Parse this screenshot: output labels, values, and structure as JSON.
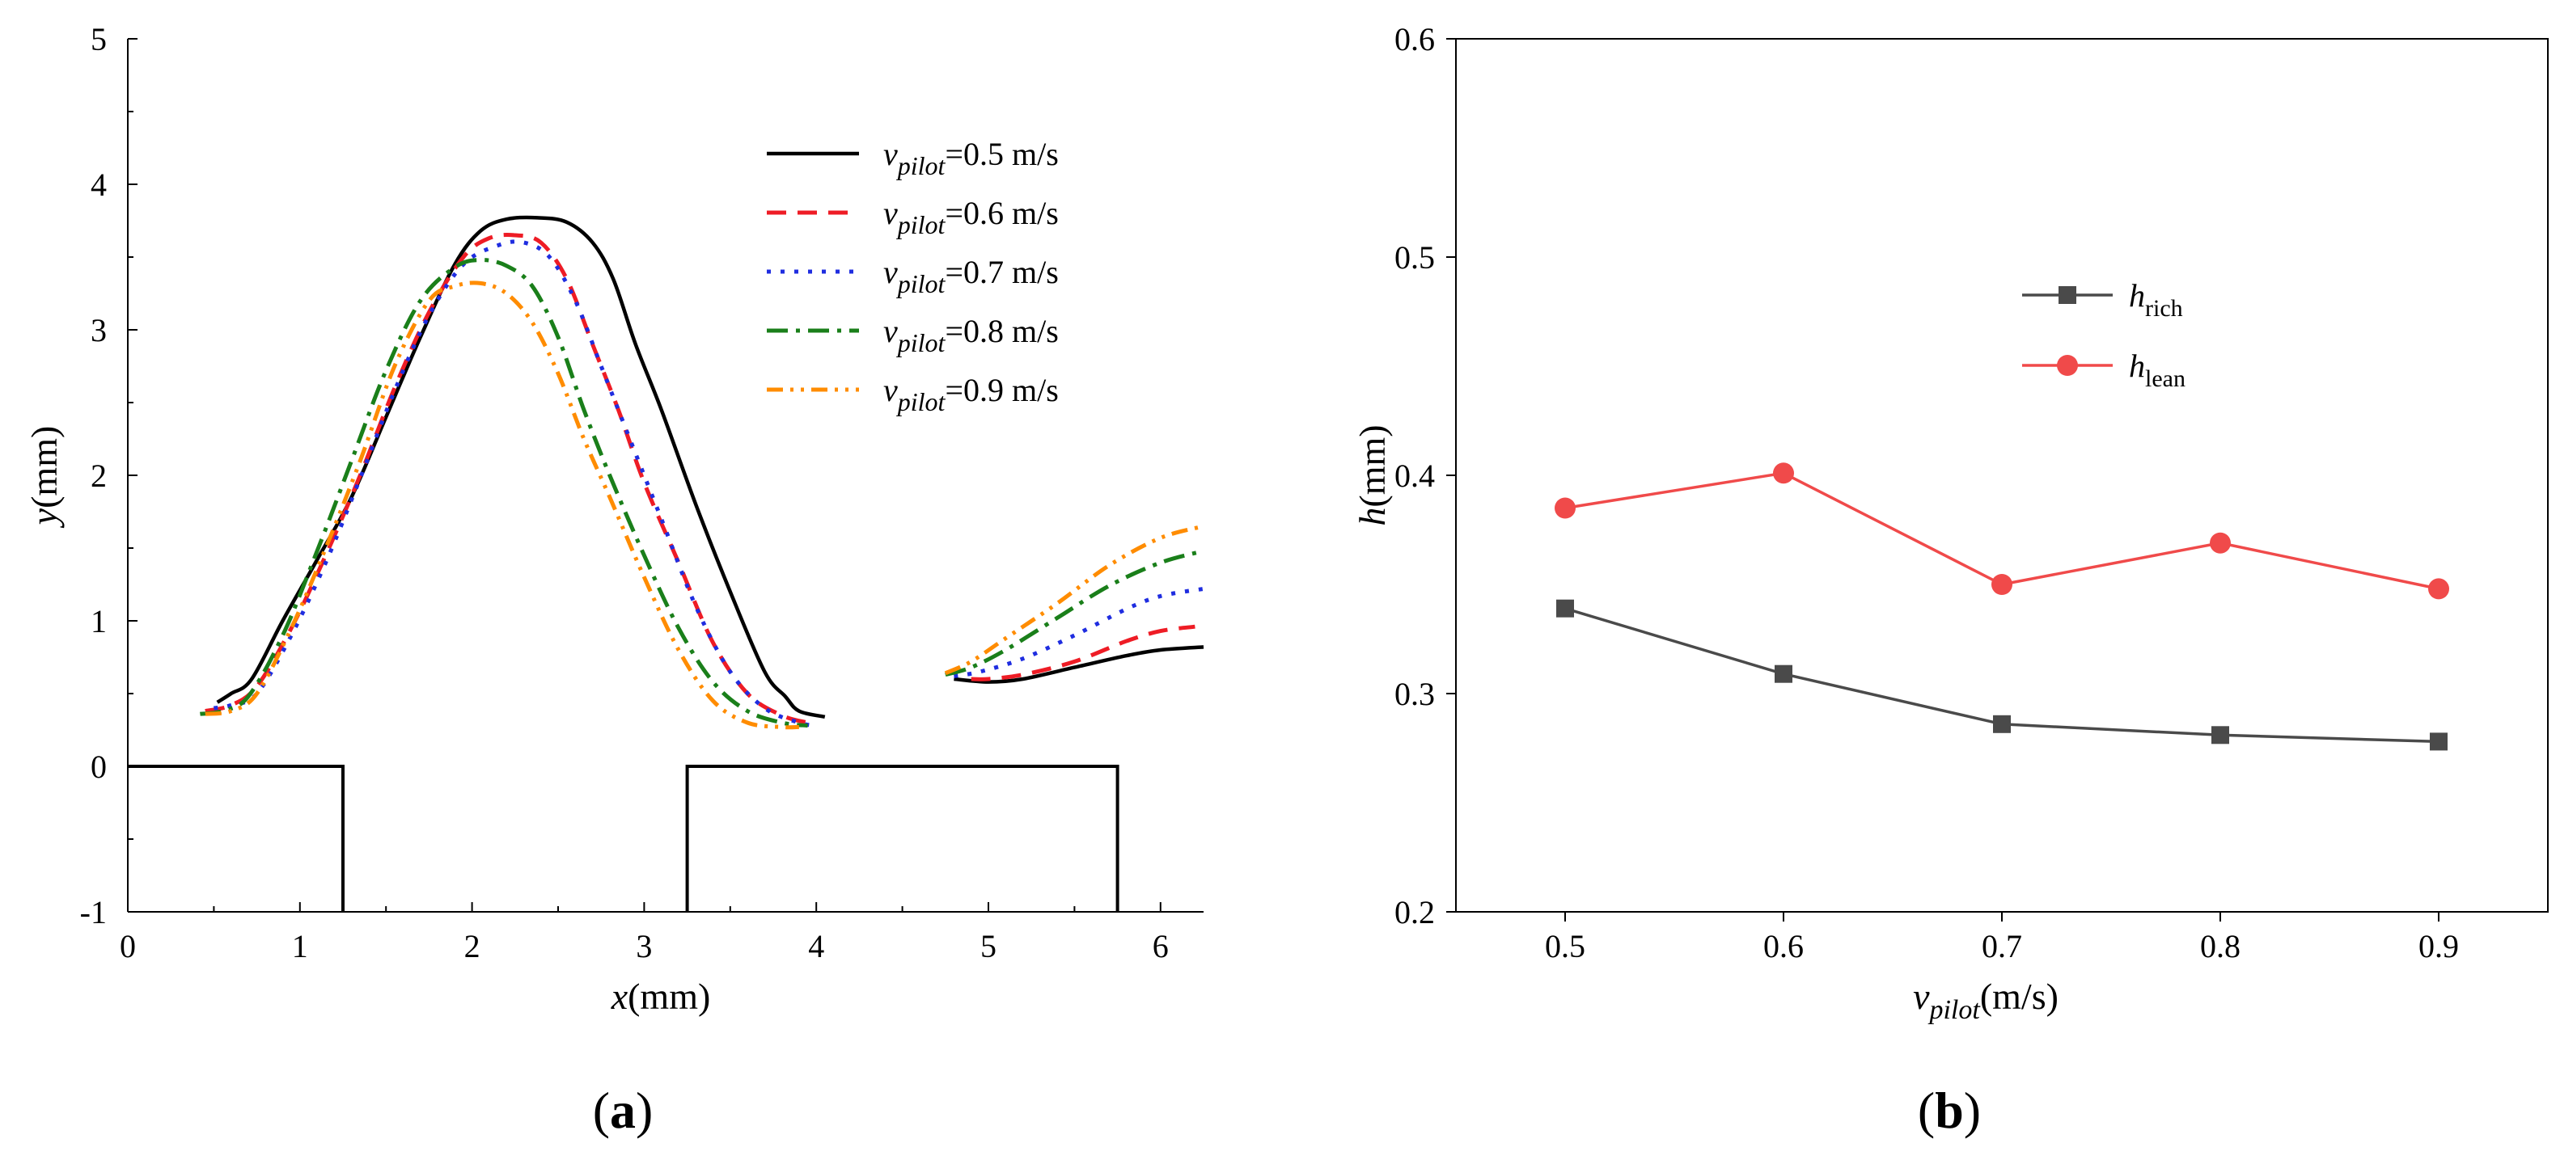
{
  "chart_data": [
    {
      "id": "a",
      "type": "line",
      "panel_label": "(a)",
      "panel_label_parts": [
        "(",
        "a",
        ")"
      ],
      "xlabel": {
        "var": "x",
        "unit": "(mm)"
      },
      "ylabel": {
        "var": "y",
        "unit": "(mm)"
      },
      "xlim": [
        0,
        6.25
      ],
      "ylim": [
        -1,
        5
      ],
      "xticks": [
        0,
        1,
        2,
        3,
        4,
        5,
        6
      ],
      "yticks": [
        -1,
        0,
        1,
        2,
        3,
        4,
        5
      ],
      "xtick_labels": [
        "0",
        "1",
        "2",
        "3",
        "4",
        "5",
        "6"
      ],
      "ytick_labels": [
        "-1",
        "0",
        "1",
        "2",
        "3",
        "4",
        "5"
      ],
      "legend_position": "top-right",
      "geometry": [
        {
          "name": "wall-left",
          "x": [
            0,
            1.25,
            1.25
          ],
          "y": [
            0,
            0,
            -1
          ]
        },
        {
          "name": "wall-right",
          "x": [
            3.25,
            3.25,
            5.75,
            5.75
          ],
          "y": [
            -1,
            0,
            0,
            -1
          ]
        }
      ],
      "series": [
        {
          "name": "0.5 m/s",
          "legend_var": "v",
          "legend_sub": "pilot",
          "legend_value": "=0.5 m/s",
          "color": "#000000",
          "dash": "",
          "segments": [
            {
              "x": [
                0.52,
                0.6,
                0.72,
                0.9,
                1.1,
                1.3,
                1.5,
                1.7,
                1.9,
                2.05,
                2.2,
                2.38,
                2.55,
                2.7,
                2.82,
                2.95,
                3.1,
                3.3,
                3.5,
                3.7,
                3.82,
                3.9,
                4.05
              ],
              "y": [
                0.44,
                0.5,
                0.6,
                1.0,
                1.42,
                1.85,
                2.4,
                2.95,
                3.45,
                3.68,
                3.76,
                3.77,
                3.74,
                3.6,
                3.35,
                2.9,
                2.45,
                1.8,
                1.2,
                0.65,
                0.48,
                0.38,
                0.34
              ]
            },
            {
              "x": [
                4.8,
                5.0,
                5.2,
                5.5,
                5.8,
                6.0,
                6.25
              ],
              "y": [
                0.6,
                0.58,
                0.6,
                0.68,
                0.76,
                0.8,
                0.82
              ]
            }
          ]
        },
        {
          "name": "0.6 m/s",
          "legend_var": "v",
          "legend_sub": "pilot",
          "legend_value": "=0.6 m/s",
          "color": "#ee1c25",
          "dash": "24,14",
          "segments": [
            {
              "x": [
                0.45,
                0.6,
                0.75,
                0.95,
                1.15,
                1.35,
                1.55,
                1.75,
                1.95,
                2.1,
                2.25,
                2.4,
                2.55,
                2.7,
                2.85,
                3.0,
                3.2,
                3.4,
                3.6,
                3.8,
                3.95
              ],
              "y": [
                0.38,
                0.42,
                0.55,
                0.95,
                1.45,
                2.0,
                2.6,
                3.12,
                3.5,
                3.63,
                3.65,
                3.6,
                3.35,
                2.9,
                2.45,
                1.95,
                1.4,
                0.85,
                0.5,
                0.35,
                0.3
              ]
            },
            {
              "x": [
                4.9,
                5.0,
                5.2,
                5.5,
                5.8,
                6.0,
                6.2
              ],
              "y": [
                0.6,
                0.6,
                0.63,
                0.72,
                0.86,
                0.93,
                0.96
              ]
            }
          ]
        },
        {
          "name": "0.7 m/s",
          "legend_var": "v",
          "legend_sub": "pilot",
          "legend_value": "=0.7 m/s",
          "color": "#1f2de0",
          "dash": "5,12",
          "segments": [
            {
              "x": [
                0.5,
                0.6,
                0.75,
                0.95,
                1.15,
                1.35,
                1.55,
                1.75,
                1.95,
                2.15,
                2.3,
                2.45,
                2.6,
                2.75,
                2.9,
                3.1,
                3.3,
                3.5,
                3.7,
                3.9,
                4.0
              ],
              "y": [
                0.4,
                0.42,
                0.5,
                0.9,
                1.4,
                1.98,
                2.58,
                3.1,
                3.45,
                3.58,
                3.6,
                3.5,
                3.2,
                2.75,
                2.3,
                1.7,
                1.1,
                0.65,
                0.4,
                0.3,
                0.28
              ]
            },
            {
              "x": [
                4.8,
                4.95,
                5.2,
                5.5,
                5.8,
                6.0,
                6.25
              ],
              "y": [
                0.62,
                0.65,
                0.74,
                0.9,
                1.08,
                1.17,
                1.22
              ]
            }
          ]
        },
        {
          "name": "0.8 m/s",
          "legend_var": "v",
          "legend_sub": "pilot",
          "legend_value": "=0.8 m/s",
          "color": "#1a7f1a",
          "dash": "26,10,5,10",
          "segments": [
            {
              "x": [
                0.42,
                0.55,
                0.7,
                0.9,
                1.1,
                1.3,
                1.5,
                1.7,
                1.9,
                2.05,
                2.2,
                2.35,
                2.5,
                2.65,
                2.8,
                3.0,
                3.2,
                3.4,
                3.6,
                3.8,
                3.95
              ],
              "y": [
                0.36,
                0.38,
                0.48,
                0.9,
                1.48,
                2.1,
                2.72,
                3.2,
                3.43,
                3.48,
                3.44,
                3.3,
                2.95,
                2.45,
                2.0,
                1.45,
                0.95,
                0.58,
                0.38,
                0.3,
                0.28
              ]
            },
            {
              "x": [
                4.75,
                4.9,
                5.1,
                5.4,
                5.7,
                6.0,
                6.25
              ],
              "y": [
                0.63,
                0.68,
                0.8,
                1.02,
                1.24,
                1.4,
                1.48
              ]
            }
          ]
        },
        {
          "name": "0.9 m/s",
          "legend_var": "v",
          "legend_sub": "pilot",
          "legend_value": "=0.9 m/s",
          "color": "#ff8c00",
          "dash": "20,9,4,9,4,9",
          "segments": [
            {
              "x": [
                0.45,
                0.6,
                0.75,
                0.95,
                1.15,
                1.35,
                1.55,
                1.75,
                1.9,
                2.05,
                2.2,
                2.35,
                2.5,
                2.65,
                2.8,
                3.0,
                3.2,
                3.4,
                3.6,
                3.8,
                3.9
              ],
              "y": [
                0.36,
                0.38,
                0.5,
                0.95,
                1.5,
                2.1,
                2.75,
                3.2,
                3.3,
                3.32,
                3.25,
                3.05,
                2.7,
                2.25,
                1.85,
                1.3,
                0.8,
                0.45,
                0.3,
                0.27,
                0.27
              ]
            },
            {
              "x": [
                4.75,
                4.9,
                5.1,
                5.4,
                5.7,
                6.0,
                6.25
              ],
              "y": [
                0.64,
                0.72,
                0.88,
                1.12,
                1.38,
                1.57,
                1.65
              ]
            }
          ]
        }
      ]
    },
    {
      "id": "b",
      "type": "line",
      "panel_label": "(b)",
      "panel_label_parts": [
        "(",
        "b",
        ")"
      ],
      "xlabel": {
        "var": "v",
        "sub": "pilot",
        "unit": "(m/s)"
      },
      "ylabel": {
        "var": "h",
        "unit": "(mm)"
      },
      "xlim": [
        0.45,
        0.95
      ],
      "ylim": [
        0.2,
        0.6
      ],
      "xticks": [
        0.5,
        0.6,
        0.7,
        0.8,
        0.9
      ],
      "yticks": [
        0.2,
        0.3,
        0.4,
        0.5,
        0.6
      ],
      "xtick_labels": [
        "0.5",
        "0.6",
        "0.7",
        "0.8",
        "0.9"
      ],
      "ytick_labels": [
        "0.2",
        "0.3",
        "0.4",
        "0.5",
        "0.6"
      ],
      "legend_position": "center-left",
      "series": [
        {
          "name": "h_rich",
          "legend_var": "h",
          "legend_sub": "rich",
          "color": "#4a4a4a",
          "marker": "square",
          "x": [
            0.5,
            0.6,
            0.7,
            0.8,
            0.9
          ],
          "y": [
            0.339,
            0.309,
            0.286,
            0.281,
            0.278
          ]
        },
        {
          "name": "h_lean",
          "legend_var": "h",
          "legend_sub": "lean",
          "color": "#f04a4a",
          "marker": "circle",
          "x": [
            0.5,
            0.6,
            0.7,
            0.8,
            0.9
          ],
          "y": [
            0.385,
            0.401,
            0.35,
            0.369,
            0.348
          ]
        }
      ]
    }
  ]
}
